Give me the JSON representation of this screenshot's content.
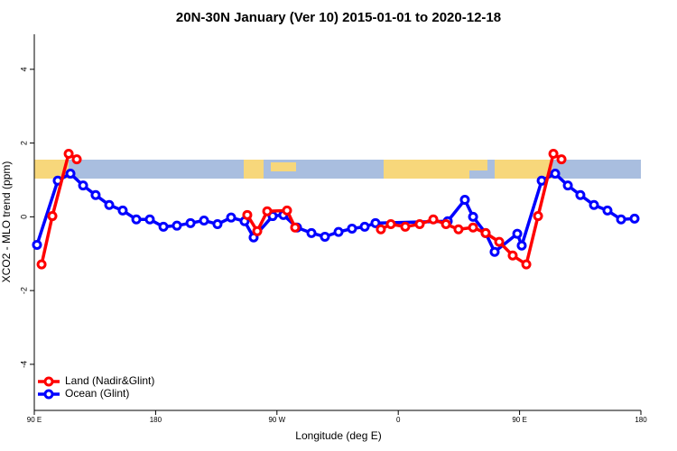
{
  "chart_data": {
    "type": "line",
    "title": "20N-30N January (Ver 10)   2015-01-01 to 2020-12-18",
    "x_label": "Longitude (deg E)",
    "y_label": "XCO2 - MLO trend (ppm)",
    "xlim": [
      90,
      540
    ],
    "ylim": [
      -5.25,
      4.95
    ],
    "xticks": [
      {
        "value": 90,
        "label": "90 E"
      },
      180,
      {
        "value": 270,
        "label": "90 W"
      },
      {
        "value": 360,
        "label": "0"
      },
      {
        "value": 450,
        "label": "90 E"
      },
      {
        "value": 540,
        "label": "180"
      }
    ],
    "yticks": [
      -4,
      -2,
      0,
      2,
      4
    ],
    "legend": "bottomleft",
    "series": [
      {
        "name": "Land (Nadir&Glint)",
        "color": "#ff0000",
        "x": [
          95.4,
          103.4,
          115.5,
          121.5,
          null,
          248.0,
          255.4,
          262.8,
          277.5,
          283.5,
          null,
          347.1,
          354.5,
          365.2,
          375.9,
          386.0,
          395.4,
          404.7,
          415.5,
          424.8,
          434.9,
          444.9,
          455.0,
          463.7,
          475.1,
          481.1
        ],
        "values": [
          -1.29,
          0.02,
          1.71,
          1.56,
          null,
          0.05,
          -0.39,
          0.15,
          0.17,
          -0.29,
          null,
          -0.34,
          -0.2,
          -0.27,
          -0.2,
          -0.07,
          -0.2,
          -0.34,
          -0.29,
          -0.44,
          -0.68,
          -1.05,
          -1.29,
          0.02,
          1.71,
          1.56
        ]
      },
      {
        "name": "Ocean (Glint)",
        "color": "#0000ff",
        "x": [
          92.0,
          107.4,
          116.8,
          126.2,
          135.5,
          145.6,
          155.6,
          165.7,
          175.7,
          185.8,
          195.8,
          205.9,
          215.9,
          225.9,
          236.0,
          246.0,
          252.7,
          266.8,
          274.8,
          284.9,
          295.6,
          305.6,
          315.7,
          325.7,
          335.1,
          343.1,
          396.7,
          409.4,
          415.5,
          424.8,
          431.5,
          448.3,
          451.6,
          466.4,
          476.4,
          485.8,
          495.1,
          505.2,
          515.2,
          525.3,
          535.3
        ],
        "values": [
          -0.76,
          0.98,
          1.17,
          0.85,
          0.59,
          0.32,
          0.17,
          -0.07,
          -0.07,
          -0.27,
          -0.24,
          -0.17,
          -0.1,
          -0.2,
          -0.02,
          -0.12,
          -0.56,
          0.02,
          0.05,
          -0.29,
          -0.44,
          -0.54,
          -0.41,
          -0.32,
          -0.27,
          -0.17,
          -0.12,
          0.46,
          0.0,
          -0.44,
          -0.95,
          -0.46,
          -0.78,
          0.98,
          1.17,
          0.85,
          0.59,
          0.32,
          0.17,
          -0.07,
          -0.05
        ]
      }
    ]
  }
}
